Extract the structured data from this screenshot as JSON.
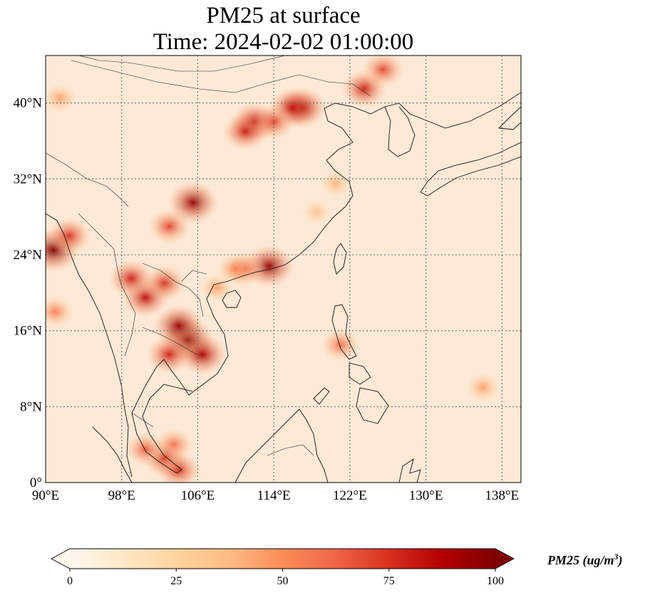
{
  "title": {
    "line1": "PM25 at surface",
    "line2": "Time: 2024-02-02 01:00:00"
  },
  "map": {
    "projection": "PlateCarree",
    "extent": {
      "lon_min": 90,
      "lon_max": 140,
      "lat_min": 0,
      "lat_max": 45
    },
    "lon_ticks": [
      {
        "value": 90,
        "label": "90°E"
      },
      {
        "value": 98,
        "label": "98°E"
      },
      {
        "value": 106,
        "label": "106°E"
      },
      {
        "value": 114,
        "label": "114°E"
      },
      {
        "value": 122,
        "label": "122°E"
      },
      {
        "value": 130,
        "label": "130°E"
      },
      {
        "value": 138,
        "label": "138°E"
      }
    ],
    "lat_ticks": [
      {
        "value": 0,
        "label": "0°"
      },
      {
        "value": 8,
        "label": "8°N"
      },
      {
        "value": 16,
        "label": "16°N"
      },
      {
        "value": 24,
        "label": "24°N"
      },
      {
        "value": 32,
        "label": "32°N"
      },
      {
        "value": 40,
        "label": "40°N"
      }
    ],
    "gridlines": true,
    "background_color": "#fde9d6"
  },
  "colorbar": {
    "label": "PM25 (ug/m",
    "label_superscript": "3",
    "label_close": ")",
    "min": 0,
    "max": 100,
    "extend": "both",
    "colormap": "OrRd",
    "ticks": [
      {
        "value": 0,
        "label": "0"
      },
      {
        "value": 25,
        "label": "25"
      },
      {
        "value": 50,
        "label": "50"
      },
      {
        "value": 75,
        "label": "75"
      },
      {
        "value": 100,
        "label": "100"
      }
    ],
    "colors": [
      "#fff7ec",
      "#fee8c8",
      "#fdd49e",
      "#fdbb84",
      "#fc8d59",
      "#ef6548",
      "#d7301f",
      "#b30000",
      "#7f0000"
    ]
  },
  "hotspots": [
    {
      "lon": 105.0,
      "lat": 15.0,
      "value": 100
    },
    {
      "lon": 104.0,
      "lat": 16.5,
      "value": 95
    },
    {
      "lon": 106.5,
      "lat": 13.5,
      "value": 90
    },
    {
      "lon": 103.0,
      "lat": 13.5,
      "value": 80
    },
    {
      "lon": 100.5,
      "lat": 19.5,
      "value": 85
    },
    {
      "lon": 99.0,
      "lat": 21.5,
      "value": 80
    },
    {
      "lon": 102.5,
      "lat": 21.0,
      "value": 75
    },
    {
      "lon": 90.8,
      "lat": 24.5,
      "value": 100
    },
    {
      "lon": 92.5,
      "lat": 26.0,
      "value": 75
    },
    {
      "lon": 91.0,
      "lat": 18.0,
      "value": 55
    },
    {
      "lon": 103.0,
      "lat": 27.0,
      "value": 70
    },
    {
      "lon": 105.5,
      "lat": 29.5,
      "value": 95
    },
    {
      "lon": 113.5,
      "lat": 22.8,
      "value": 95
    },
    {
      "lon": 111.0,
      "lat": 22.5,
      "value": 65
    },
    {
      "lon": 110.0,
      "lat": 22.5,
      "value": 55
    },
    {
      "lon": 117.0,
      "lat": 39.5,
      "value": 90
    },
    {
      "lon": 116.0,
      "lat": 39.5,
      "value": 85
    },
    {
      "lon": 112.0,
      "lat": 38.0,
      "value": 85
    },
    {
      "lon": 111.0,
      "lat": 37.0,
      "value": 80
    },
    {
      "lon": 114.0,
      "lat": 38.0,
      "value": 70
    },
    {
      "lon": 123.5,
      "lat": 41.5,
      "value": 80
    },
    {
      "lon": 125.5,
      "lat": 43.5,
      "value": 70
    },
    {
      "lon": 103.5,
      "lat": 4.0,
      "value": 60
    },
    {
      "lon": 102.5,
      "lat": 2.5,
      "value": 75
    },
    {
      "lon": 104.0,
      "lat": 1.3,
      "value": 75
    },
    {
      "lon": 100.5,
      "lat": 3.5,
      "value": 65
    },
    {
      "lon": 121.0,
      "lat": 14.5,
      "value": 60
    },
    {
      "lon": 136.0,
      "lat": 10.0,
      "value": 45
    },
    {
      "lon": 91.5,
      "lat": 40.5,
      "value": 45
    },
    {
      "lon": 108.0,
      "lat": 20.5,
      "value": 45
    },
    {
      "lon": 120.5,
      "lat": 31.5,
      "value": 40
    },
    {
      "lon": 118.5,
      "lat": 28.5,
      "value": 35
    }
  ]
}
